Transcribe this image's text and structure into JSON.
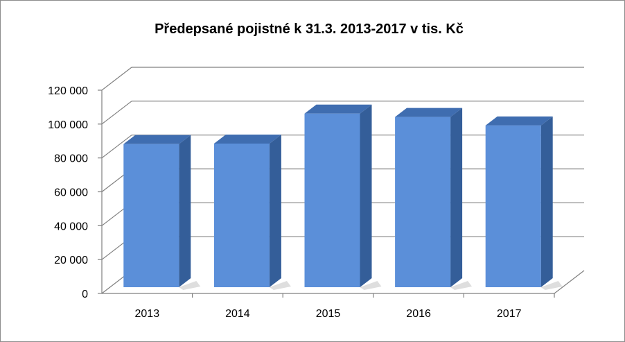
{
  "chart_data": {
    "type": "bar",
    "title": "Předepsané pojistné k 31.3. 2013-2017 v tis. Kč",
    "categories": [
      "2013",
      "2014",
      "2015",
      "2016",
      "2017"
    ],
    "values": [
      84500,
      84800,
      102500,
      100500,
      95500
    ],
    "yticks": [
      "0",
      "20 000",
      "40 000",
      "60 000",
      "80 000",
      "100 000",
      "120 000"
    ],
    "ylim": [
      0,
      120000
    ],
    "grid": true,
    "legend": "none",
    "colors": {
      "front": "#5b8fd9",
      "side": "#345e99",
      "top": "#3f6db0",
      "grid": "#808080"
    }
  }
}
